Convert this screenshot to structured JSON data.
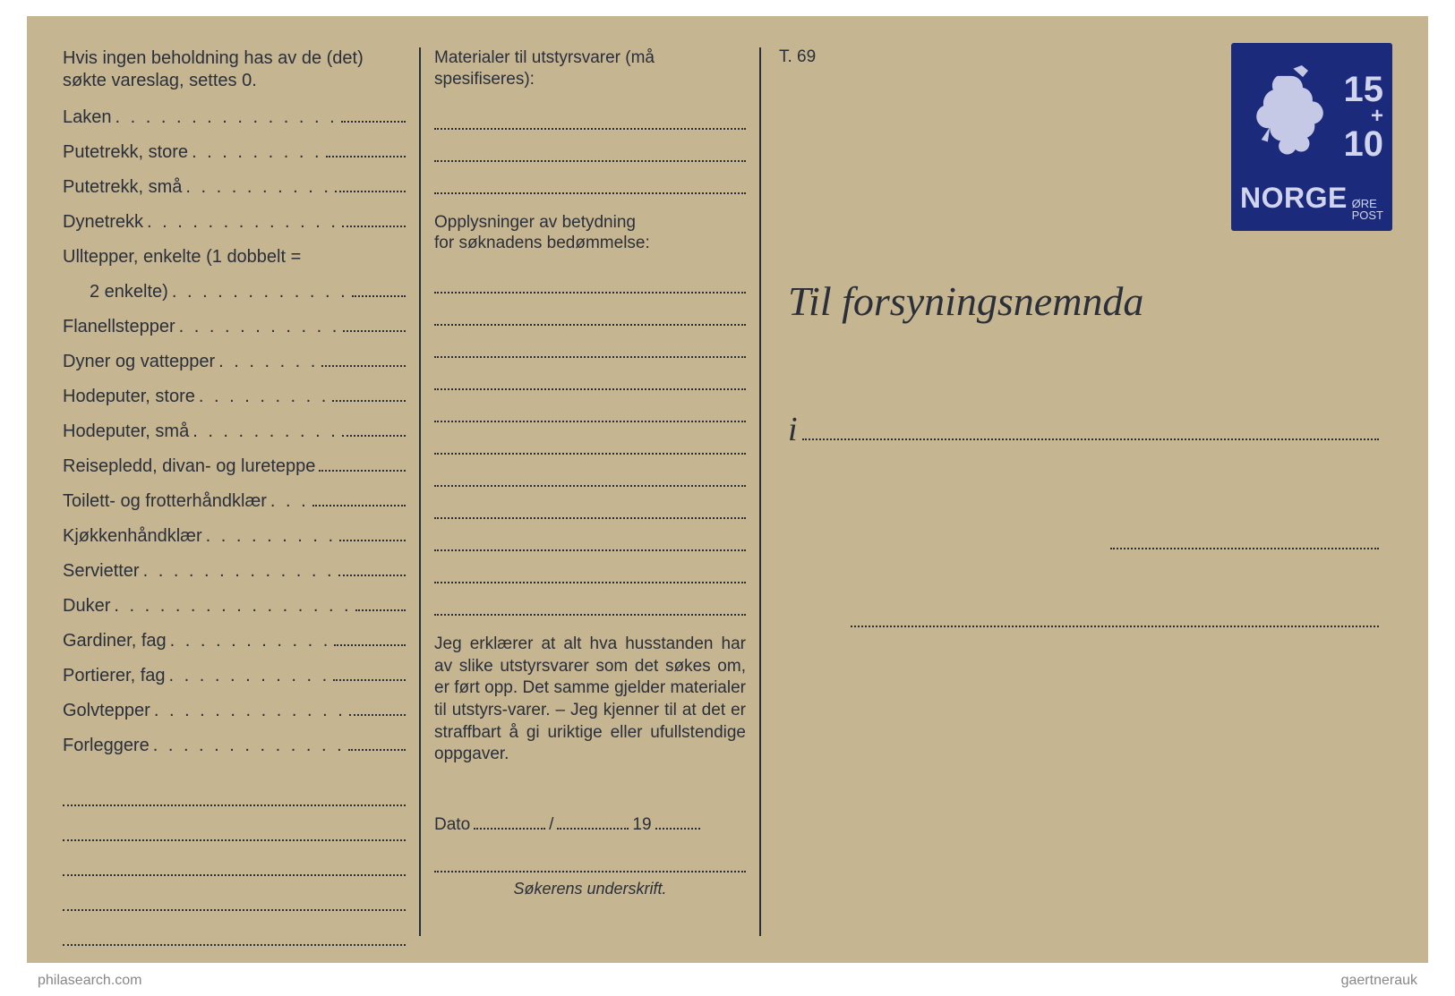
{
  "card": {
    "background_color": "#c5b591",
    "text_color": "#2a2f3a",
    "rule_color": "#2a2f3a"
  },
  "left": {
    "intro": "Hvis ingen beholdning has av de (det) søkte vareslag, settes 0.",
    "items": [
      {
        "label": "Laken",
        "dots": ". . . . . . . . . . . . . . ."
      },
      {
        "label": "Putetrekk, store",
        "dots": ". . . . . . . . ."
      },
      {
        "label": "Putetrekk, små",
        "dots": ". . . . . . . . . ."
      },
      {
        "label": "Dynetrekk",
        "dots": ". . . . . . . . . . . . ."
      },
      {
        "label": "Ulltepper, enkelte (1 dobbelt =",
        "dots": "",
        "nofill": true
      },
      {
        "label": "2 enkelte)",
        "dots": ". . . . . . . . . . . .",
        "indent": true
      },
      {
        "label": "Flanellstepper",
        "dots": ". . . . . . . . . . ."
      },
      {
        "label": "Dyner og vattepper",
        "dots": ". . . . . . ."
      },
      {
        "label": "Hodeputer, store",
        "dots": ". . . . . . . . ."
      },
      {
        "label": "Hodeputer, små",
        "dots": ". . . . . . . . . ."
      },
      {
        "label": "Reisepledd, divan- og lureteppe",
        "dots": ""
      },
      {
        "label": "Toilett- og frotterhåndklær",
        "dots": ". . ."
      },
      {
        "label": "Kjøkkenhåndklær",
        "dots": ". . . . . . . . ."
      },
      {
        "label": "Servietter",
        "dots": ". . . . . . . . . . . . ."
      },
      {
        "label": "Duker",
        "dots": ". . . . . . . . . . . . . . . ."
      },
      {
        "label": "Gardiner, fag",
        "dots": ". . . . . . . . . . ."
      },
      {
        "label": "Portierer, fag",
        "dots": ". . . . . . . . . . ."
      },
      {
        "label": "Golvtepper",
        "dots": ". . . . . . . . . . . . ."
      },
      {
        "label": "Forleggere",
        "dots": ". . . . . . . . . . . . ."
      }
    ],
    "blank_lines": 5
  },
  "mid": {
    "header": "Materialer til utstyrsvarer (må spesifiseres):",
    "lines1": 3,
    "sub": "Opplysninger av betydning\nfor søknadens bedømmelse:",
    "lines2": 11,
    "declaration": "Jeg erklærer at alt hva husstanden har av slike utstyrsvarer som det søkes om, er ført opp. Det samme gjelder materialer til utstyrs-varer. – Jeg kjenner til at det er straffbart å gi uriktige eller ufullstendige oppgaver.",
    "date_prefix": "Dato",
    "date_slash": "/",
    "date_year": "19",
    "sig_label": "Søkerens underskrift."
  },
  "right": {
    "form_id": "T. 69",
    "title": "Til forsyningsnemnda",
    "i_letter": "i"
  },
  "stamp": {
    "background_color": "#1b2a7a",
    "text_color": "#d0d4ec",
    "top_value": "15",
    "plus": "+",
    "bottom_value": "10",
    "country": "NORGE",
    "unit1": "ØRE",
    "unit2": "POST"
  },
  "watermarks": {
    "left": "philasearch.com",
    "right": "gaertnerauk"
  }
}
